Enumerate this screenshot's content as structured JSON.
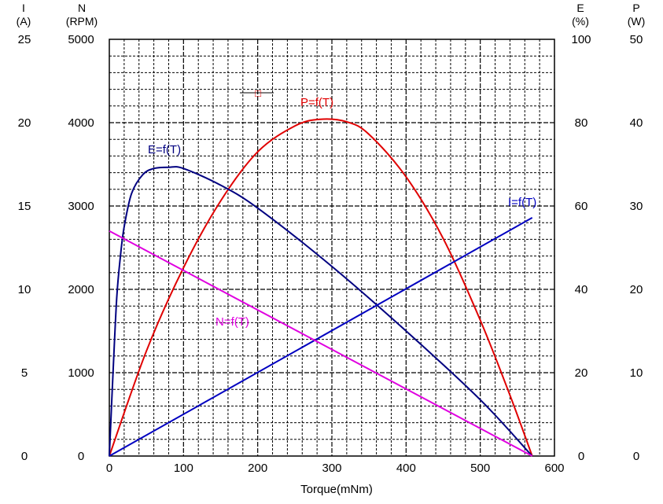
{
  "chart_data": {
    "type": "line",
    "xlabel": "Torque(mNm)",
    "xlim": [
      0,
      600
    ],
    "x_ticks": [
      "0",
      "100",
      "200",
      "300",
      "400",
      "500",
      "600"
    ],
    "grid": true,
    "axes": {
      "current": {
        "symbol": "I",
        "unit": "(A)",
        "range": [
          0,
          25
        ],
        "ticks": [
          "25",
          "20",
          "15",
          "10",
          "5",
          "0"
        ]
      },
      "speed": {
        "symbol": "N",
        "unit": "(RPM)",
        "range": [
          0,
          5000
        ],
        "ticks": [
          "5000",
          "4000",
          "3000",
          "2000",
          "1000",
          "0"
        ]
      },
      "efficiency": {
        "symbol": "E",
        "unit": "(%)",
        "range": [
          0,
          100
        ],
        "ticks": [
          "100",
          "80",
          "60",
          "40",
          "20",
          "0"
        ]
      },
      "power": {
        "symbol": "P",
        "unit": "(W)",
        "range": [
          0,
          50
        ],
        "ticks": [
          "50",
          "40",
          "30",
          "20",
          "10",
          "0"
        ]
      }
    },
    "series": [
      {
        "name": "P=f(T)",
        "axis": "power",
        "color": "#e00000",
        "x": [
          0,
          50,
          100,
          150,
          200,
          250,
          284,
          320,
          350,
          400,
          450,
          500,
          540,
          570
        ],
        "y": [
          0,
          12.6,
          22.6,
          30.6,
          36.5,
          39.6,
          40.4,
          40.1,
          38.6,
          33.5,
          26.1,
          16.3,
          7.3,
          0
        ]
      },
      {
        "name": "E=f(T)",
        "axis": "efficiency",
        "color": "#000080",
        "x": [
          0,
          5,
          10,
          15,
          20,
          30,
          45,
          60,
          80,
          100,
          150,
          200,
          300,
          400,
          500,
          570
        ],
        "y": [
          0,
          20,
          38,
          48,
          55,
          63,
          67.5,
          69,
          69.3,
          69,
          65,
          59.5,
          45.5,
          30,
          13.5,
          0
        ]
      },
      {
        "name": "I=f(T)",
        "axis": "current",
        "color": "#0000c0",
        "x": [
          0,
          570
        ],
        "y": [
          0,
          14.3
        ]
      },
      {
        "name": "N=f(T)",
        "axis": "speed",
        "color": "#e000e0",
        "x": [
          0,
          570
        ],
        "y": [
          2700,
          0
        ]
      }
    ]
  },
  "marker": {
    "glyph": "□"
  }
}
